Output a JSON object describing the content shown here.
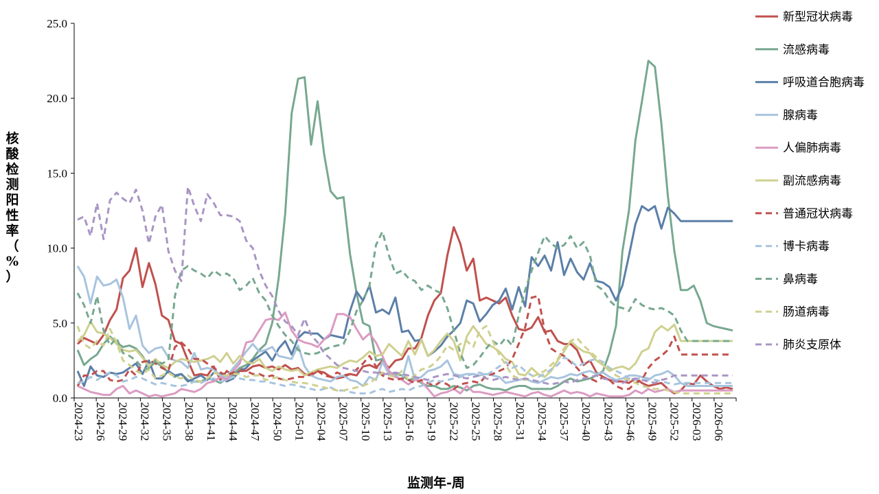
{
  "chart_data": {
    "type": "line",
    "xlabel": "监测年-周",
    "ylabel": "核酸检测阳性率（%）",
    "ylim": [
      0,
      25
    ],
    "yticks": [
      "0.0",
      "5.0",
      "10.0",
      "15.0",
      "20.0",
      "25.0"
    ],
    "xtick_labels": [
      "2024-23",
      "2024-26",
      "2024-29",
      "2024-32",
      "2024-35",
      "2024-38",
      "2024-41",
      "2024-44",
      "2024-47",
      "2024-50",
      "2025-01",
      "2025-04",
      "2025-07",
      "2025-10",
      "2025-13",
      "2025-16",
      "2025-19",
      "2025-22",
      "2025-25",
      "2025-28",
      "2025-31",
      "2025-34",
      "2025-37",
      "2025-40",
      "2025-43",
      "2025-46",
      "2025-49",
      "2025-52",
      "2026-03",
      "2026-06"
    ],
    "grid": false,
    "legend_position": "right",
    "series": [
      {
        "name": "新型冠状病毒",
        "color": "#C0504D",
        "dash": false,
        "values": [
          3.6,
          4.0,
          3.8,
          3.6,
          4.2,
          5.2,
          5.9,
          8.0,
          8.5,
          10.0,
          7.4,
          9.0,
          7.6,
          5.5,
          5.2,
          3.8,
          3.6,
          2.5,
          1.5,
          1.6,
          1.5,
          2.1,
          1.2,
          1.8,
          1.5,
          2.0,
          1.8,
          2.1,
          2.2,
          2.0,
          2.1,
          1.9,
          2.2,
          1.9,
          2.0,
          1.6,
          1.5,
          1.8,
          1.7,
          1.4,
          1.3,
          1.4,
          1.6,
          1.5,
          2.1,
          2.2,
          2.0,
          2.5,
          2.0,
          2.5,
          2.6,
          3.3,
          3.3,
          4.0,
          5.5,
          6.5,
          7.0,
          9.5,
          11.4,
          10.3,
          8.5,
          9.3,
          6.5,
          6.7,
          6.5,
          6.3,
          6.7,
          5.5,
          4.6,
          4.5,
          4.7,
          5.4,
          4.4,
          4.5,
          3.8,
          3.6,
          3.6,
          3.2,
          2.2,
          2.5,
          1.7,
          1.4,
          1.2,
          1.1,
          1.1,
          1.0,
          1.3,
          1.0,
          0.8,
          0.9,
          1.0,
          0.6,
          0.3,
          0.5,
          1.0,
          0.9,
          1.5,
          1.1,
          0.8,
          0.6,
          0.7,
          0.6
        ]
      },
      {
        "name": "流感病毒",
        "color": "#77A890",
        "dash": false,
        "values": [
          3.2,
          2.2,
          2.6,
          2.9,
          3.6,
          4.1,
          3.7,
          3.4,
          3.5,
          3.3,
          2.8,
          2.0,
          2.4,
          2.1,
          1.7,
          1.4,
          1.6,
          1.2,
          1.1,
          1.1,
          1.3,
          1.2,
          1.0,
          1.3,
          1.6,
          2.0,
          2.2,
          2.6,
          3.2,
          3.6,
          5.0,
          8.0,
          12.3,
          19.0,
          21.3,
          21.4,
          16.9,
          19.8,
          16.3,
          13.8,
          13.3,
          13.4,
          9.6,
          7.0,
          5.0,
          4.8,
          2.5,
          2.6,
          1.7,
          1.6,
          1.5,
          1.2,
          1.3,
          1.0,
          0.8,
          0.8,
          0.6,
          0.6,
          0.8,
          0.7,
          0.5,
          0.8,
          0.9,
          0.7,
          0.6,
          0.6,
          0.5,
          0.7,
          0.8,
          0.8,
          0.6,
          0.6,
          0.6,
          0.6,
          0.8,
          1.1,
          1.3,
          1.1,
          1.2,
          1.3,
          1.5,
          1.8,
          3.0,
          4.8,
          9.8,
          12.5,
          17.2,
          19.8,
          22.5,
          22.1,
          18.3,
          13.5,
          9.8,
          7.2,
          7.2,
          7.5,
          6.5,
          5.0,
          4.8,
          4.7,
          4.6,
          4.5
        ]
      },
      {
        "name": "呼吸道合胞病毒",
        "color": "#5B7FA8",
        "dash": false,
        "values": [
          1.8,
          0.8,
          2.1,
          1.5,
          1.4,
          1.7,
          1.6,
          1.7,
          2.0,
          2.3,
          1.6,
          2.5,
          1.3,
          1.3,
          1.8,
          1.5,
          1.6,
          1.1,
          1.3,
          1.5,
          1.2,
          1.7,
          1.6,
          1.1,
          1.3,
          1.8,
          2.0,
          2.5,
          2.8,
          3.1,
          2.5,
          3.3,
          3.8,
          2.9,
          4.0,
          4.4,
          4.3,
          4.3,
          3.9,
          4.2,
          4.1,
          4.0,
          5.8,
          7.1,
          6.5,
          7.5,
          5.7,
          5.9,
          5.6,
          6.7,
          4.4,
          4.5,
          3.8,
          3.9,
          2.8,
          3.1,
          3.5,
          4.1,
          4.5,
          5.0,
          6.5,
          6.3,
          5.1,
          5.6,
          6.2,
          6.5,
          7.3,
          5.9,
          7.4,
          6.1,
          9.4,
          8.8,
          9.5,
          8.5,
          10.4,
          8.2,
          9.3,
          8.4,
          7.9,
          9.0,
          7.8,
          7.7,
          7.4,
          6.5,
          7.5,
          9.5,
          11.6,
          12.8,
          12.5,
          12.8,
          11.3,
          12.7,
          12.3,
          11.8,
          11.8,
          11.8,
          11.8,
          11.8,
          11.8,
          11.8,
          11.8,
          11.8
        ]
      },
      {
        "name": "腺病毒",
        "color": "#A8C4DE",
        "dash": false,
        "values": [
          8.8,
          8.1,
          6.3,
          8.1,
          7.5,
          7.6,
          7.9,
          6.7,
          4.6,
          5.5,
          3.5,
          3.0,
          3.3,
          3.4,
          2.7,
          2.5,
          2.4,
          2.0,
          3.0,
          1.9,
          2.0,
          1.9,
          1.5,
          1.4,
          2.0,
          2.5,
          3.1,
          3.6,
          3.1,
          3.2,
          3.4,
          2.8,
          2.7,
          2.6,
          3.5,
          2.1,
          1.5,
          1.3,
          1.2,
          1.1,
          1.4,
          1.5,
          1.2,
          1.1,
          0.8,
          1.4,
          1.2,
          2.4,
          1.6,
          1.5,
          1.2,
          2.8,
          1.2,
          1.4,
          1.8,
          1.9,
          2.1,
          2.5,
          1.6,
          1.5,
          1.6,
          1.6,
          1.5,
          1.6,
          1.5,
          1.4,
          1.0,
          1.1,
          1.2,
          1.3,
          1.1,
          1.0,
          1.2,
          1.4,
          1.3,
          1.4,
          1.6,
          1.5,
          1.7,
          1.8,
          1.6,
          1.7,
          1.4,
          1.2,
          1.3,
          1.5,
          1.5,
          1.4,
          1.2,
          1.5,
          1.6,
          1.8,
          1.5,
          1.0,
          0.8,
          0.8,
          0.8,
          0.8,
          0.8,
          0.8,
          0.8,
          0.8
        ]
      },
      {
        "name": "人偏肺病毒",
        "color": "#DB9BC2",
        "dash": false,
        "values": [
          0.8,
          0.6,
          0.4,
          0.3,
          0.2,
          0.2,
          0.6,
          0.8,
          0.3,
          0.5,
          0.3,
          0.1,
          0.2,
          0.1,
          0.2,
          0.3,
          0.6,
          0.5,
          0.4,
          0.6,
          1.0,
          1.1,
          1.4,
          1.2,
          1.8,
          2.3,
          3.7,
          3.8,
          4.5,
          5.2,
          5.3,
          5.2,
          5.7,
          4.5,
          3.9,
          3.7,
          3.6,
          3.4,
          3.9,
          4.3,
          5.6,
          5.6,
          5.4,
          4.6,
          3.9,
          4.3,
          3.7,
          2.8,
          1.8,
          1.4,
          1.2,
          0.9,
          1.2,
          1.1,
          0.6,
          0.1,
          0.3,
          0.4,
          0.6,
          0.3,
          0.8,
          0.4,
          0.4,
          0.3,
          0.2,
          0.3,
          0.4,
          0.3,
          0.2,
          0.1,
          0.3,
          0.4,
          0.2,
          0.1,
          0.3,
          0.5,
          0.3,
          0.4,
          0.3,
          0.1,
          0.3,
          0.2,
          0.1,
          0.1,
          0.1,
          0.2,
          0.5,
          0.3,
          0.6,
          0.4,
          0.5,
          0.6,
          0.4,
          0.5,
          0.5,
          0.5,
          0.5,
          0.5,
          0.5,
          0.5,
          0.5,
          0.5
        ]
      },
      {
        "name": "副流感病毒",
        "color": "#CFD08F",
        "dash": false,
        "values": [
          3.8,
          4.2,
          5.1,
          4.4,
          4.3,
          4.0,
          3.6,
          3.2,
          3.1,
          3.2,
          2.7,
          2.1,
          2.6,
          2.2,
          2.0,
          2.4,
          2.6,
          2.5,
          2.4,
          2.5,
          2.6,
          2.8,
          2.4,
          3.0,
          2.3,
          2.8,
          2.4,
          2.3,
          2.6,
          2.0,
          1.8,
          2.1,
          1.9,
          1.8,
          1.9,
          1.5,
          1.7,
          1.9,
          2.0,
          2.1,
          2.0,
          2.3,
          2.5,
          2.4,
          2.7,
          3.1,
          2.8,
          2.9,
          3.6,
          3.2,
          2.8,
          3.8,
          2.9,
          3.9,
          2.8,
          3.2,
          3.8,
          4.3,
          3.8,
          2.5,
          4.1,
          4.8,
          4.2,
          3.6,
          3.4,
          3.1,
          2.6,
          2.4,
          1.6,
          1.5,
          2.0,
          1.6,
          1.4,
          1.8,
          2.5,
          3.1,
          3.8,
          3.4,
          3.1,
          3.0,
          2.5,
          2.2,
          1.8,
          2.0,
          2.1,
          1.9,
          2.3,
          3.1,
          3.3,
          4.4,
          4.8,
          4.5,
          4.9,
          3.8,
          3.8,
          3.8,
          3.8,
          3.8,
          3.8,
          3.8,
          3.8,
          3.8
        ]
      },
      {
        "name": "普通冠状病毒",
        "color": "#C0504D",
        "dash": true,
        "values": [
          0.8,
          1.5,
          1.5,
          1.8,
          1.8,
          1.2,
          1.1,
          1.2,
          1.9,
          1.5,
          2.4,
          2.5,
          2.3,
          2.0,
          1.8,
          3.4,
          3.7,
          3.3,
          2.6,
          2.6,
          2.3,
          2.0,
          1.7,
          1.5,
          1.7,
          1.8,
          1.8,
          1.6,
          1.6,
          1.4,
          1.5,
          1.3,
          1.2,
          1.3,
          1.4,
          1.4,
          1.6,
          1.8,
          1.5,
          1.4,
          1.7,
          1.5,
          1.6,
          1.9,
          2.3,
          2.8,
          2.1,
          1.5,
          1.3,
          1.2,
          1.3,
          1.2,
          1.0,
          1.2,
          1.0,
          0.8,
          1.1,
          0.9,
          0.6,
          0.9,
          1.0,
          1.1,
          1.0,
          1.5,
          1.6,
          1.8,
          2.0,
          2.6,
          3.6,
          4.7,
          6.7,
          6.8,
          4.5,
          3.3,
          3.0,
          2.8,
          2.4,
          2.0,
          1.5,
          1.3,
          1.1,
          1.4,
          1.2,
          0.8,
          0.6,
          0.6,
          1.0,
          1.2,
          2.0,
          2.5,
          2.8,
          3.2,
          4.1,
          2.9,
          2.9,
          2.9,
          2.9,
          2.9,
          2.9,
          2.9,
          2.9,
          2.9
        ]
      },
      {
        "name": "博卡病毒",
        "color": "#A8C4DE",
        "dash": true,
        "values": [
          1.0,
          1.1,
          1.4,
          1.2,
          1.5,
          1.7,
          1.5,
          1.1,
          1.2,
          1.4,
          1.3,
          1.1,
          0.9,
          1.0,
          0.9,
          0.8,
          0.8,
          0.9,
          1.1,
          1.0,
          1.2,
          1.3,
          1.1,
          1.2,
          1.4,
          1.3,
          1.2,
          1.2,
          1.1,
          1.1,
          1.0,
          0.9,
          0.8,
          0.9,
          0.8,
          0.7,
          0.6,
          0.5,
          0.6,
          0.7,
          0.5,
          0.5,
          0.4,
          0.3,
          0.3,
          0.3,
          0.5,
          0.6,
          0.4,
          0.5,
          0.6,
          0.5,
          0.7,
          0.8,
          1.0,
          1.2,
          1.1,
          1.2,
          1.3,
          1.4,
          1.5,
          1.6,
          1.7,
          1.5,
          1.8,
          2.1,
          2.4,
          2.0,
          2.2,
          1.8,
          1.5,
          1.4,
          1.6,
          1.9,
          2.2,
          2.7,
          2.5,
          2.1,
          2.3,
          2.5,
          2.6,
          2.4,
          2.0,
          1.8,
          1.6,
          1.3,
          1.2,
          1.4,
          1.3,
          1.2,
          1.1,
          1.0,
          0.9,
          1.0,
          1.0,
          1.0,
          1.0,
          1.0,
          1.0,
          1.0,
          1.0,
          1.0
        ]
      },
      {
        "name": "鼻病毒",
        "color": "#77A890",
        "dash": true,
        "values": [
          7.0,
          6.2,
          5.0,
          6.8,
          4.5,
          3.5,
          4.0,
          3.0,
          2.8,
          2.5,
          2.0,
          1.9,
          2.5,
          2.3,
          2.5,
          6.8,
          8.5,
          8.8,
          8.5,
          8.3,
          8.0,
          8.5,
          8.2,
          8.3,
          8.0,
          7.2,
          7.5,
          8.0,
          7.0,
          6.5,
          5.5,
          4.8,
          4.2,
          3.8,
          3.2,
          3.0,
          2.9,
          3.0,
          3.2,
          3.4,
          3.5,
          3.6,
          4.5,
          5.8,
          6.5,
          7.5,
          10.2,
          11.1,
          9.5,
          8.3,
          8.5,
          8.0,
          7.8,
          7.2,
          7.5,
          7.2,
          7.0,
          6.0,
          4.5,
          3.0,
          2.0,
          2.2,
          2.7,
          3.3,
          3.8,
          3.5,
          4.0,
          3.5,
          5.5,
          7.2,
          8.5,
          9.7,
          10.8,
          10.3,
          10.0,
          10.2,
          10.8,
          10.0,
          10.4,
          9.5,
          7.5,
          7.2,
          6.5,
          6.1,
          6.0,
          5.8,
          6.6,
          6.2,
          6.0,
          5.9,
          6.0,
          5.8,
          5.5,
          4.5,
          3.8,
          3.8,
          3.8,
          3.8,
          3.8,
          3.8,
          3.8,
          3.8
        ]
      },
      {
        "name": "肠道病毒",
        "color": "#CFD08F",
        "dash": true,
        "values": [
          4.8,
          3.6,
          3.3,
          3.8,
          3.5,
          4.6,
          3.7,
          2.5,
          2.2,
          1.8,
          1.6,
          1.9,
          1.3,
          1.5,
          1.7,
          1.4,
          1.3,
          1.5,
          1.2,
          1.1,
          1.3,
          1.7,
          1.5,
          1.5,
          1.6,
          1.6,
          1.4,
          1.5,
          1.5,
          1.2,
          1.3,
          1.4,
          1.2,
          1.1,
          1.0,
          1.0,
          0.9,
          0.8,
          0.7,
          0.6,
          0.5,
          0.5,
          0.6,
          0.7,
          0.8,
          1.0,
          1.3,
          1.7,
          1.5,
          1.4,
          1.8,
          1.2,
          1.5,
          1.9,
          2.0,
          2.3,
          2.8,
          3.5,
          3.2,
          3.6,
          3.8,
          3.4,
          4.5,
          4.8,
          3.8,
          2.9,
          2.2,
          1.5,
          1.3,
          1.2,
          1.4,
          1.6,
          1.8,
          2.2,
          2.6,
          3.3,
          3.8,
          4.0,
          3.5,
          3.1,
          2.7,
          2.2,
          1.9,
          1.5,
          1.3,
          1.2,
          1.0,
          0.8,
          0.7,
          0.6,
          0.6,
          0.5,
          0.4,
          0.3,
          0.3,
          0.3,
          0.3,
          0.3,
          0.3,
          0.3,
          0.3,
          0.3
        ]
      },
      {
        "name": "肺炎支原体",
        "color": "#A995C4",
        "dash": true,
        "values": [
          11.9,
          12.1,
          10.8,
          13.0,
          10.6,
          13.2,
          13.7,
          13.3,
          13.0,
          13.9,
          12.5,
          10.3,
          12.1,
          12.9,
          9.8,
          8.5,
          7.8,
          14.1,
          12.8,
          11.8,
          13.6,
          13.0,
          12.2,
          12.2,
          12.1,
          11.8,
          10.5,
          10.0,
          8.5,
          7.5,
          6.8,
          5.8,
          5.1,
          4.8,
          4.2,
          5.3,
          4.2,
          3.7,
          3.0,
          2.6,
          2.2,
          2.0,
          1.9,
          1.8,
          1.8,
          1.7,
          1.7,
          1.6,
          1.6,
          1.7,
          1.6,
          1.5,
          1.4,
          1.3,
          1.2,
          1.4,
          1.5,
          1.6,
          1.5,
          1.4,
          1.3,
          1.4,
          1.5,
          1.3,
          1.2,
          1.3,
          1.4,
          1.3,
          1.2,
          1.3,
          1.2,
          1.1,
          1.0,
          0.9,
          1.0,
          1.1,
          1.0,
          1.2,
          1.3,
          1.4,
          1.5,
          1.3,
          1.2,
          1.1,
          1.0,
          1.2,
          1.3,
          1.2,
          1.1,
          1.0,
          1.2,
          1.3,
          1.5,
          1.5,
          1.5,
          1.5,
          1.5,
          1.5,
          1.5,
          1.5,
          1.5,
          1.5
        ]
      }
    ]
  }
}
